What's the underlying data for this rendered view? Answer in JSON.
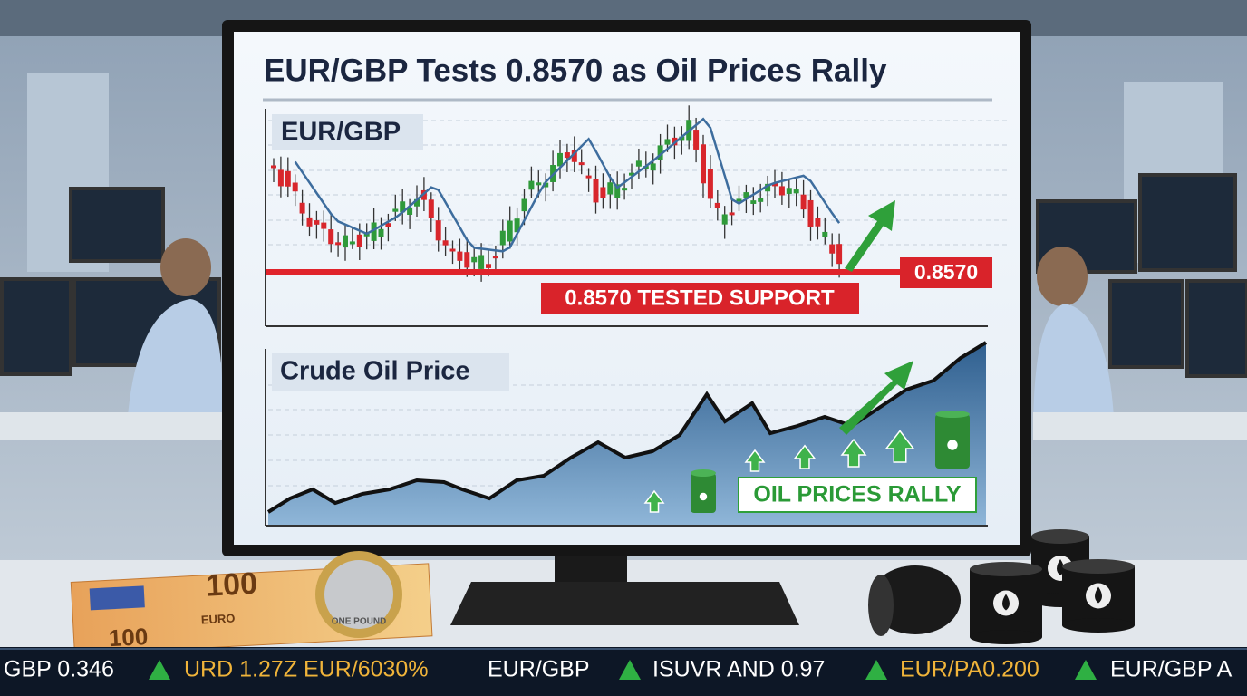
{
  "header": {
    "title": "EUR/GBP Tests 0.8570 as Oil Prices Rally"
  },
  "charts": [
    {
      "label": "EUR/GBP",
      "level_label": "0.8570",
      "annotation": "0.8570 TESTED SUPPORT"
    },
    {
      "label": "Crude Oil Price",
      "annotation": "OIL PRICES RALLY"
    }
  ],
  "desk": {
    "banknote": [
      "100",
      "100",
      "EURO"
    ],
    "coin": "ONE POUND"
  },
  "ticker": [
    "GBP 0.346",
    "URD 1.27Z EUR/6030%",
    "EUR/GBP",
    "ISUVR AND 0.97",
    "EUR/PA0.200",
    "EUR/GBP A"
  ]
}
